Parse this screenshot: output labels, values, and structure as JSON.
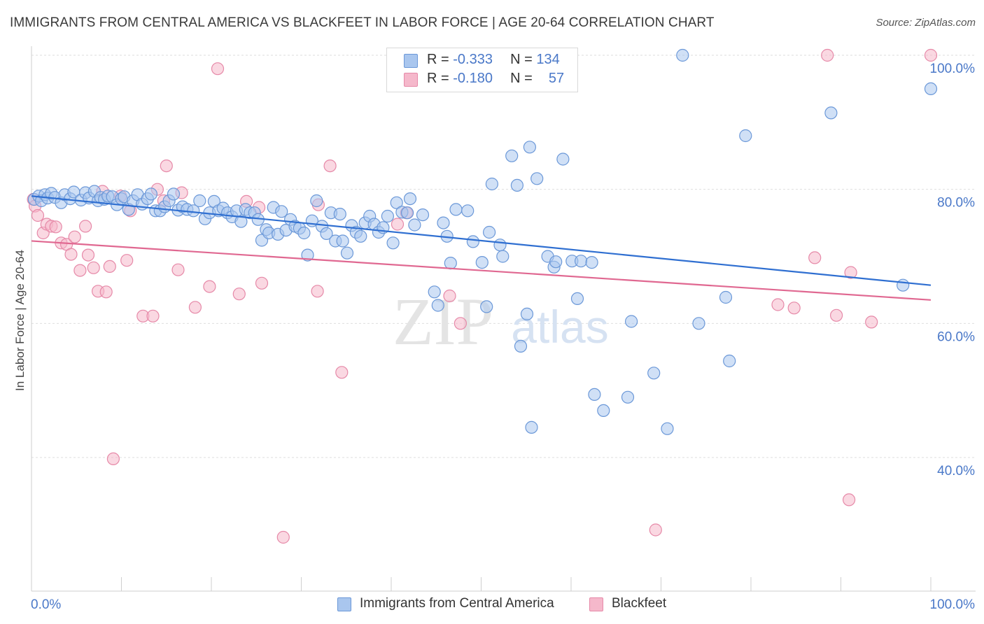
{
  "title": "IMMIGRANTS FROM CENTRAL AMERICA VS BLACKFEET IN LABOR FORCE | AGE 20-64 CORRELATION CHART",
  "source": "Source: ZipAtlas.com",
  "watermark": {
    "zip": "ZIP",
    "atlas": "atlas"
  },
  "legend": {
    "rows": [
      {
        "r_label": "R =",
        "r_value": "-0.333",
        "n_label": "N =",
        "n_value": "134",
        "color": "#a9c6ee",
        "stroke": "#6b98d8"
      },
      {
        "r_label": "R =",
        "r_value": "-0.180",
        "n_label": "N =",
        "n_value": "57",
        "color": "#f5b8cb",
        "stroke": "#e689a8"
      }
    ]
  },
  "bottom_legend": [
    {
      "label": "Immigrants from Central America",
      "color": "#a9c6ee",
      "stroke": "#6b98d8"
    },
    {
      "label": "Blackfeet",
      "color": "#f5b8cb",
      "stroke": "#e689a8"
    }
  ],
  "chart_data": {
    "type": "scatter",
    "title": "IMMIGRANTS FROM CENTRAL AMERICA VS BLACKFEET IN LABOR FORCE | AGE 20-64 CORRELATION CHART",
    "xlabel": "",
    "ylabel": "In Labor Force | Age 20-64",
    "xlim": [
      0,
      100
    ],
    "ylim": [
      20,
      102
    ],
    "x_tick_labels": [
      "0.0%",
      "100.0%"
    ],
    "y_ticks": [
      40,
      60,
      80,
      100
    ],
    "y_tick_labels": [
      "40.0%",
      "60.0%",
      "80.0%",
      "100.0%"
    ],
    "grid": true,
    "legend_position": "top-center",
    "series": [
      {
        "name": "Immigrants from Central America",
        "color": "#a9c6ee",
        "stroke": "#6b98d8",
        "trend": {
          "color": "#2f6fd1",
          "x": [
            0,
            100
          ],
          "y": [
            79.0,
            65.7
          ]
        },
        "points": [
          [
            0.3,
            78.5
          ],
          [
            0.8,
            79.0
          ],
          [
            1.1,
            78.3
          ],
          [
            1.5,
            79.2
          ],
          [
            1.8,
            78.7
          ],
          [
            2.2,
            79.4
          ],
          [
            2.6,
            78.8
          ],
          [
            3.3,
            78.0
          ],
          [
            3.7,
            79.2
          ],
          [
            4.3,
            78.6
          ],
          [
            4.7,
            79.6
          ],
          [
            5.5,
            78.4
          ],
          [
            6.0,
            79.5
          ],
          [
            6.4,
            78.7
          ],
          [
            7.0,
            79.7
          ],
          [
            7.4,
            78.3
          ],
          [
            7.7,
            78.8
          ],
          [
            8.1,
            78.5
          ],
          [
            8.5,
            79.0
          ],
          [
            9.0,
            78.9
          ],
          [
            9.5,
            77.7
          ],
          [
            10.0,
            78.6
          ],
          [
            10.3,
            78.9
          ],
          [
            10.8,
            77.0
          ],
          [
            11.3,
            78.3
          ],
          [
            11.8,
            79.2
          ],
          [
            12.3,
            77.8
          ],
          [
            12.9,
            78.6
          ],
          [
            13.3,
            79.3
          ],
          [
            13.8,
            76.8
          ],
          [
            14.3,
            76.8
          ],
          [
            14.8,
            77.4
          ],
          [
            15.3,
            78.3
          ],
          [
            15.8,
            79.3
          ],
          [
            16.3,
            76.9
          ],
          [
            16.8,
            77.4
          ],
          [
            17.3,
            77.0
          ],
          [
            18.0,
            76.8
          ],
          [
            18.7,
            78.3
          ],
          [
            19.3,
            75.6
          ],
          [
            19.8,
            76.5
          ],
          [
            20.3,
            78.2
          ],
          [
            20.8,
            76.8
          ],
          [
            21.3,
            77.2
          ],
          [
            21.8,
            76.5
          ],
          [
            22.3,
            75.9
          ],
          [
            22.8,
            76.8
          ],
          [
            23.3,
            75.2
          ],
          [
            23.8,
            77.0
          ],
          [
            24.3,
            76.5
          ],
          [
            24.8,
            76.5
          ],
          [
            25.2,
            75.5
          ],
          [
            25.6,
            72.4
          ],
          [
            26.1,
            74.0
          ],
          [
            26.4,
            73.5
          ],
          [
            26.9,
            77.3
          ],
          [
            27.4,
            73.3
          ],
          [
            27.8,
            76.7
          ],
          [
            28.3,
            73.9
          ],
          [
            28.8,
            75.5
          ],
          [
            29.3,
            74.5
          ],
          [
            29.8,
            74.2
          ],
          [
            30.3,
            73.5
          ],
          [
            30.7,
            70.2
          ],
          [
            31.2,
            75.3
          ],
          [
            31.7,
            78.3
          ],
          [
            32.3,
            74.5
          ],
          [
            32.8,
            73.4
          ],
          [
            33.3,
            76.5
          ],
          [
            33.8,
            72.3
          ],
          [
            34.3,
            76.3
          ],
          [
            34.6,
            72.3
          ],
          [
            35.1,
            70.5
          ],
          [
            35.6,
            74.6
          ],
          [
            36.1,
            73.6
          ],
          [
            36.6,
            73.0
          ],
          [
            37.1,
            75.0
          ],
          [
            37.6,
            76.0
          ],
          [
            38.1,
            74.8
          ],
          [
            38.6,
            73.6
          ],
          [
            39.1,
            74.3
          ],
          [
            39.6,
            76.0
          ],
          [
            40.2,
            72.0
          ],
          [
            40.6,
            78.0
          ],
          [
            41.2,
            76.6
          ],
          [
            41.8,
            76.5
          ],
          [
            42.1,
            78.6
          ],
          [
            42.6,
            74.7
          ],
          [
            43.5,
            76.2
          ],
          [
            44.8,
            64.7
          ],
          [
            45.2,
            62.7
          ],
          [
            45.8,
            75.0
          ],
          [
            46.2,
            73.0
          ],
          [
            46.6,
            69.0
          ],
          [
            47.2,
            77.0
          ],
          [
            48.5,
            76.8
          ],
          [
            49.1,
            72.2
          ],
          [
            50.1,
            69.1
          ],
          [
            50.6,
            62.5
          ],
          [
            50.9,
            73.6
          ],
          [
            51.2,
            80.8
          ],
          [
            52.1,
            71.7
          ],
          [
            52.4,
            70.0
          ],
          [
            53.4,
            85.0
          ],
          [
            54.0,
            80.6
          ],
          [
            54.4,
            56.6
          ],
          [
            55.1,
            61.4
          ],
          [
            55.4,
            86.3
          ],
          [
            55.6,
            44.5
          ],
          [
            56.2,
            81.6
          ],
          [
            57.4,
            70.0
          ],
          [
            58.1,
            68.4
          ],
          [
            58.3,
            69.2
          ],
          [
            59.1,
            84.5
          ],
          [
            60.1,
            69.3
          ],
          [
            60.7,
            63.7
          ],
          [
            61.1,
            69.3
          ],
          [
            62.3,
            69.1
          ],
          [
            62.6,
            49.4
          ],
          [
            63.6,
            47.0
          ],
          [
            66.3,
            49.0
          ],
          [
            66.7,
            60.3
          ],
          [
            69.2,
            52.6
          ],
          [
            70.7,
            44.3
          ],
          [
            72.4,
            100.0
          ],
          [
            74.2,
            60.0
          ],
          [
            77.2,
            63.9
          ],
          [
            77.6,
            54.4
          ],
          [
            79.4,
            88.0
          ],
          [
            88.9,
            91.4
          ],
          [
            96.9,
            65.7
          ],
          [
            100.0,
            95.0
          ],
          [
            51.2,
            100.0
          ],
          [
            49.0,
            100.0
          ]
        ]
      },
      {
        "name": "Blackfeet",
        "color": "#f5b8cb",
        "stroke": "#e689a8",
        "trend": {
          "color": "#e06891",
          "x": [
            0,
            100
          ],
          "y": [
            72.3,
            63.5
          ]
        },
        "points": [
          [
            0.2,
            78.5
          ],
          [
            0.4,
            77.5
          ],
          [
            0.7,
            76.1
          ],
          [
            1.3,
            73.5
          ],
          [
            1.7,
            74.8
          ],
          [
            2.2,
            74.5
          ],
          [
            2.7,
            74.4
          ],
          [
            3.3,
            72.0
          ],
          [
            3.9,
            71.8
          ],
          [
            4.4,
            70.3
          ],
          [
            4.8,
            72.9
          ],
          [
            5.4,
            67.9
          ],
          [
            6.0,
            74.5
          ],
          [
            6.3,
            70.2
          ],
          [
            6.9,
            68.3
          ],
          [
            7.4,
            64.8
          ],
          [
            7.9,
            79.7
          ],
          [
            8.3,
            64.7
          ],
          [
            8.7,
            68.5
          ],
          [
            9.1,
            39.8
          ],
          [
            9.9,
            79.0
          ],
          [
            10.6,
            69.4
          ],
          [
            11.0,
            76.8
          ],
          [
            12.4,
            61.1
          ],
          [
            13.5,
            61.1
          ],
          [
            14.0,
            80.0
          ],
          [
            14.7,
            78.3
          ],
          [
            15.0,
            83.5
          ],
          [
            16.3,
            68.0
          ],
          [
            16.7,
            79.5
          ],
          [
            18.2,
            62.4
          ],
          [
            19.8,
            65.5
          ],
          [
            20.7,
            98.0
          ],
          [
            23.1,
            64.4
          ],
          [
            23.9,
            78.2
          ],
          [
            25.3,
            77.3
          ],
          [
            25.6,
            66.0
          ],
          [
            28.0,
            28.1
          ],
          [
            31.8,
            64.8
          ],
          [
            31.9,
            77.7
          ],
          [
            33.2,
            83.5
          ],
          [
            34.5,
            52.7
          ],
          [
            40.7,
            74.8
          ],
          [
            41.7,
            76.5
          ],
          [
            46.5,
            64.1
          ],
          [
            47.7,
            60.0
          ],
          [
            50.7,
            100.0
          ],
          [
            69.4,
            29.2
          ],
          [
            83.0,
            62.8
          ],
          [
            84.8,
            62.3
          ],
          [
            87.1,
            69.8
          ],
          [
            88.5,
            100.0
          ],
          [
            89.5,
            61.2
          ],
          [
            90.9,
            33.7
          ],
          [
            91.1,
            67.6
          ],
          [
            93.4,
            60.2
          ],
          [
            100.0,
            100.0
          ]
        ]
      }
    ]
  }
}
